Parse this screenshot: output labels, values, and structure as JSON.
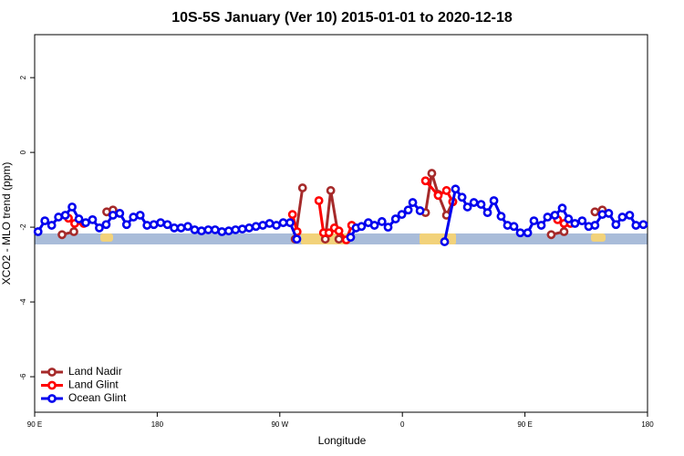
{
  "chart_data": {
    "type": "line",
    "title": "10S-5S January (Ver 10)   2015-01-01 to 2020-12-18",
    "x_label": "Longitude",
    "y_label": "XCO2 - MLO trend (ppm)",
    "xlim": [
      90,
      540
    ],
    "xticks": [
      {
        "value": 90,
        "label": "90 E"
      },
      180,
      {
        "value": 270,
        "label": "90 W"
      },
      {
        "value": 360,
        "label": "0"
      },
      {
        "value": 450,
        "label": "90 E"
      },
      {
        "value": 540,
        "label": "180"
      }
    ],
    "ylim": [
      -6.95,
      3.15
    ],
    "yticks": [
      -6,
      -4,
      -2,
      0,
      2
    ],
    "legend": "bottom-left",
    "series": [
      {
        "name": "Land Nadir",
        "color": "#a52a2a",
        "x": [
          110.1,
          118.8,
          null,
          142.9,
          147.5,
          null,
          281.3,
          286.7,
          null,
          303.4,
          307.4,
          313.4,
          null,
          377,
          381.6,
          386.3,
          392.4,
          397,
          null,
          469.3,
          478.7,
          null,
          501.4,
          506.8
        ],
        "values": [
          -2.2,
          -2.12,
          null,
          -1.59,
          -1.54,
          null,
          -2.32,
          -0.95,
          null,
          -2.32,
          -1.02,
          -2.32,
          null,
          -1.61,
          -0.56,
          -1.12,
          -1.68,
          -1.32,
          null,
          -2.2,
          -2.12,
          null,
          -1.59,
          -1.54
        ]
      },
      {
        "name": "Land Glint",
        "color": "#ff0000",
        "x": [
          114.8,
          119.4,
          126.1,
          null,
          279.3,
          282.7,
          null,
          298.7,
          302.1,
          306.1,
          310.1,
          313.4,
          318.8,
          322.8,
          null,
          377,
          386.3,
          392.4,
          397,
          null,
          474,
          478.7,
          483.4
        ],
        "values": [
          -1.76,
          -1.9,
          -1.9,
          null,
          -1.66,
          -2.12,
          null,
          -1.29,
          -2.15,
          -2.15,
          -2.02,
          -2.1,
          -2.34,
          -1.95,
          null,
          -0.76,
          -1.15,
          -1.02,
          -1.32,
          null,
          -1.8,
          -1.9,
          -1.9
        ]
      },
      {
        "name": "Ocean Glint",
        "color": "#0000ee",
        "x": [
          92.5,
          97.5,
          102.5,
          107.5,
          112.5,
          117.5,
          122.5,
          127.5,
          132.5,
          137.5,
          142.5,
          147.5,
          152.5,
          157.5,
          162.5,
          167.5,
          172.5,
          177.5,
          182.5,
          187.5,
          192.5,
          197.5,
          202.5,
          207.5,
          212.5,
          217.5,
          222.5,
          227.5,
          232.5,
          237.5,
          242.5,
          247.5,
          252.5,
          257.5,
          262.5,
          267.5,
          272.5,
          277.5,
          282.5,
          null,
          322,
          326,
          330,
          335,
          339.5,
          345,
          349.5,
          355,
          359.6,
          364.3,
          367.6,
          373,
          null,
          391,
          399,
          403.8,
          407.8,
          412.5,
          417.8,
          422.5,
          427.2,
          432.5,
          437.2,
          441.9,
          446.6,
          452,
          456.6,
          462,
          466.6,
          472,
          477.4,
          482,
          486.7,
          492,
          496.8,
          501.4,
          506.8,
          511.5,
          516.8,
          521.5,
          526.9,
          531.5,
          536.9
        ],
        "values": [
          -2.12,
          -1.83,
          -1.95,
          -1.73,
          -1.68,
          -1.46,
          -1.78,
          -1.88,
          -1.8,
          -2.02,
          -1.93,
          -1.68,
          -1.63,
          -1.93,
          -1.73,
          -1.68,
          -1.95,
          -1.93,
          -1.88,
          -1.93,
          -2.02,
          -2.02,
          -1.98,
          -2.07,
          -2.1,
          -2.07,
          -2.07,
          -2.12,
          -2.1,
          -2.07,
          -2.05,
          -2.02,
          -1.98,
          -1.95,
          -1.9,
          -1.95,
          -1.88,
          -1.88,
          -2.32,
          null,
          -2.27,
          -2.02,
          -1.98,
          -1.88,
          -1.95,
          -1.85,
          -2.0,
          -1.78,
          -1.66,
          -1.54,
          -1.34,
          -1.56,
          null,
          -2.39,
          -0.98,
          -1.2,
          -1.46,
          -1.34,
          -1.39,
          -1.61,
          -1.29,
          -1.71,
          -1.95,
          -1.98,
          -2.15,
          -2.15,
          -1.83,
          -1.95,
          -1.73,
          -1.68,
          -1.49,
          -1.78,
          -1.9,
          -1.83,
          -1.98,
          -1.95,
          -1.66,
          -1.63,
          -1.93,
          -1.73,
          -1.68,
          -1.95,
          -1.93
        ]
      }
    ]
  }
}
